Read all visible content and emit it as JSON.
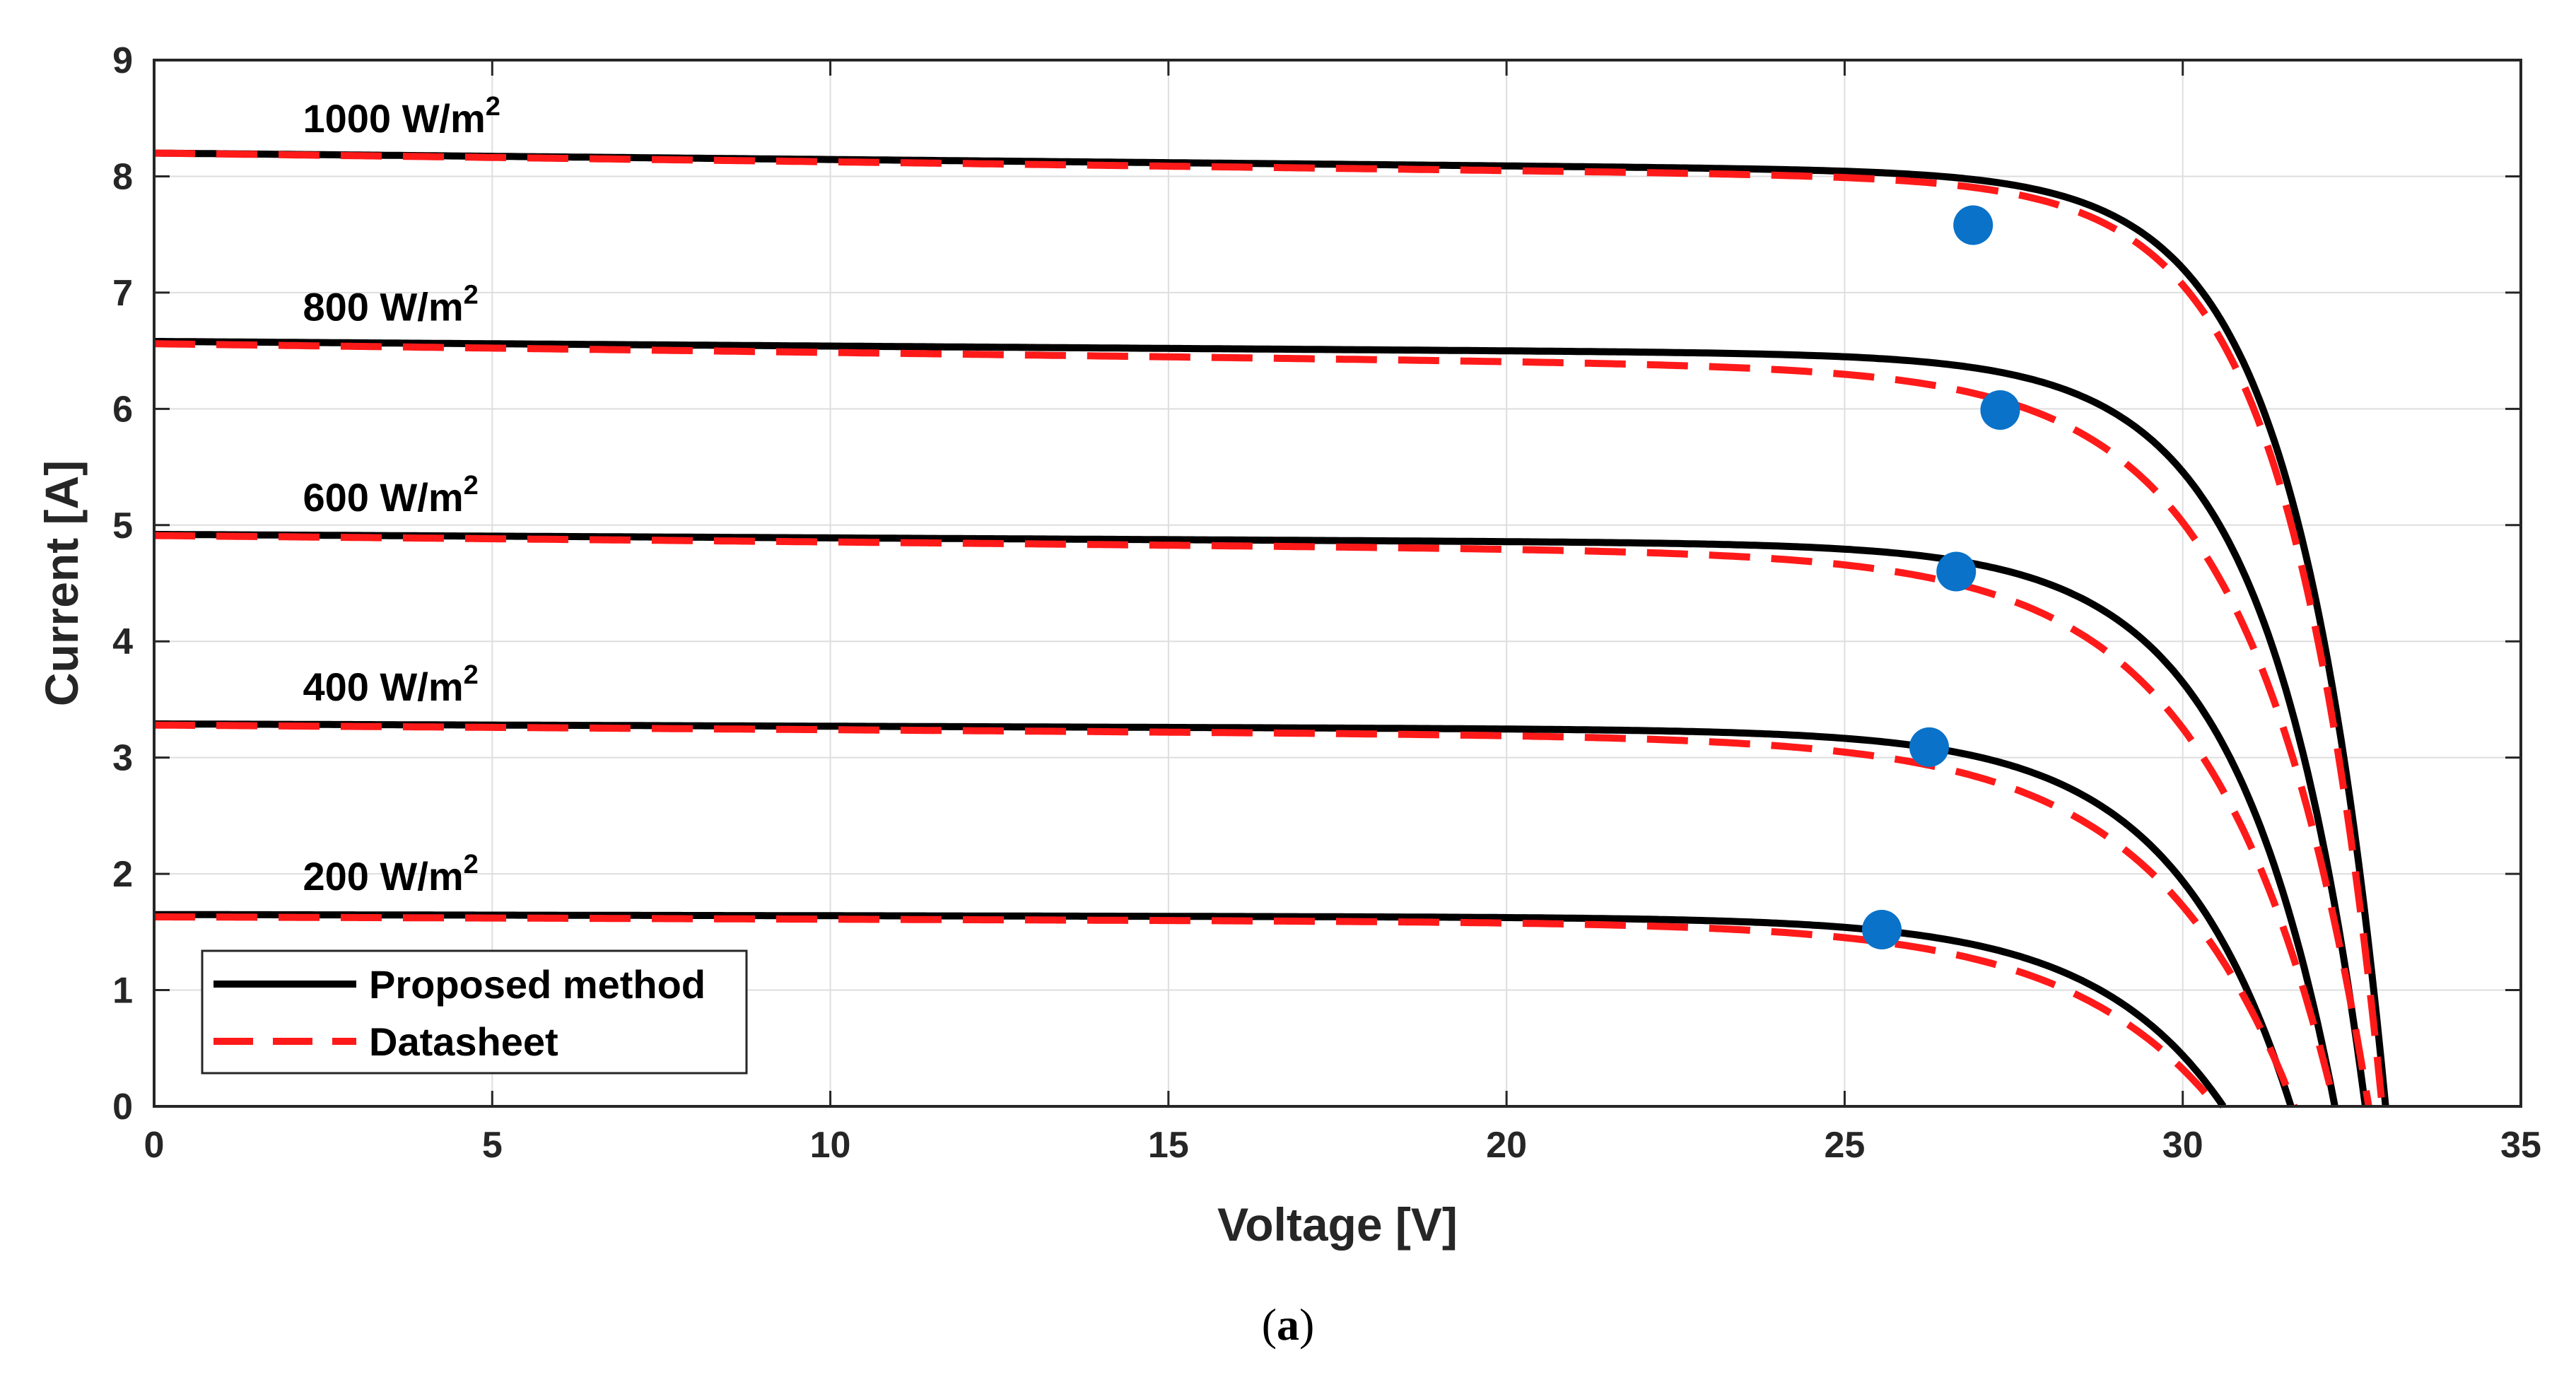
{
  "chart_data": {
    "type": "line",
    "title": "",
    "caption": {
      "open": "(",
      "letter": "a",
      "close": ")"
    },
    "xlabel": "Voltage [V]",
    "ylabel": "Current [A]",
    "xlim": [
      0,
      35
    ],
    "ylim": [
      0,
      9
    ],
    "xticks": [
      0,
      5,
      10,
      15,
      20,
      25,
      30,
      35
    ],
    "yticks": [
      0,
      1,
      2,
      3,
      4,
      5,
      6,
      7,
      8,
      9
    ],
    "grid": true,
    "legend_position": "bottom-left",
    "legend": [
      {
        "label": "Proposed method",
        "style": "solid",
        "color": "#000000"
      },
      {
        "label": "Datasheet",
        "style": "dashed",
        "color": "#ff1a1a"
      }
    ],
    "mpp_color": "#0a72c8",
    "curves": [
      {
        "irradiance_label": "1000 W/m",
        "sup": "2",
        "label_x": 2.2,
        "label_y": 8.38,
        "proposed": {
          "isc": 8.2,
          "voc": 33.0,
          "slope": 0.0055,
          "vt": 1.32
        },
        "datasheet": {
          "isc": 8.2,
          "voc": 32.95,
          "slope": 0.0075,
          "vt": 1.36
        },
        "mpp": {
          "v": 26.9,
          "i": 7.58
        }
      },
      {
        "irradiance_label": "800 W/m",
        "sup": "2",
        "label_x": 2.2,
        "label_y": 6.76,
        "proposed": {
          "isc": 6.58,
          "voc": 32.7,
          "slope": 0.004,
          "vt": 1.45
        },
        "datasheet": {
          "isc": 6.56,
          "voc": 32.75,
          "slope": 0.0075,
          "vt": 1.75
        },
        "mpp": {
          "v": 27.3,
          "i": 5.99
        }
      },
      {
        "irradiance_label": "600 W/m",
        "sup": "2",
        "label_x": 2.2,
        "label_y": 5.12,
        "proposed": {
          "isc": 4.92,
          "voc": 32.25,
          "slope": 0.003,
          "vt": 1.6
        },
        "datasheet": {
          "isc": 4.91,
          "voc": 32.25,
          "slope": 0.0055,
          "vt": 1.95
        },
        "mpp": {
          "v": 26.65,
          "i": 4.6
        }
      },
      {
        "irradiance_label": "400 W/m",
        "sup": "2",
        "label_x": 2.2,
        "label_y": 3.49,
        "proposed": {
          "isc": 3.29,
          "voc": 31.6,
          "slope": 0.002,
          "vt": 1.75
        },
        "datasheet": {
          "isc": 3.28,
          "voc": 31.65,
          "slope": 0.004,
          "vt": 2.1
        },
        "mpp": {
          "v": 26.25,
          "i": 3.09
        }
      },
      {
        "irradiance_label": "200 W/m",
        "sup": "2",
        "label_x": 2.2,
        "label_y": 1.86,
        "proposed": {
          "isc": 1.65,
          "voc": 30.6,
          "slope": 0.001,
          "vt": 1.9
        },
        "datasheet": {
          "isc": 1.63,
          "voc": 30.5,
          "slope": 0.002,
          "vt": 2.2
        },
        "mpp": {
          "v": 25.55,
          "i": 1.52
        }
      }
    ]
  }
}
